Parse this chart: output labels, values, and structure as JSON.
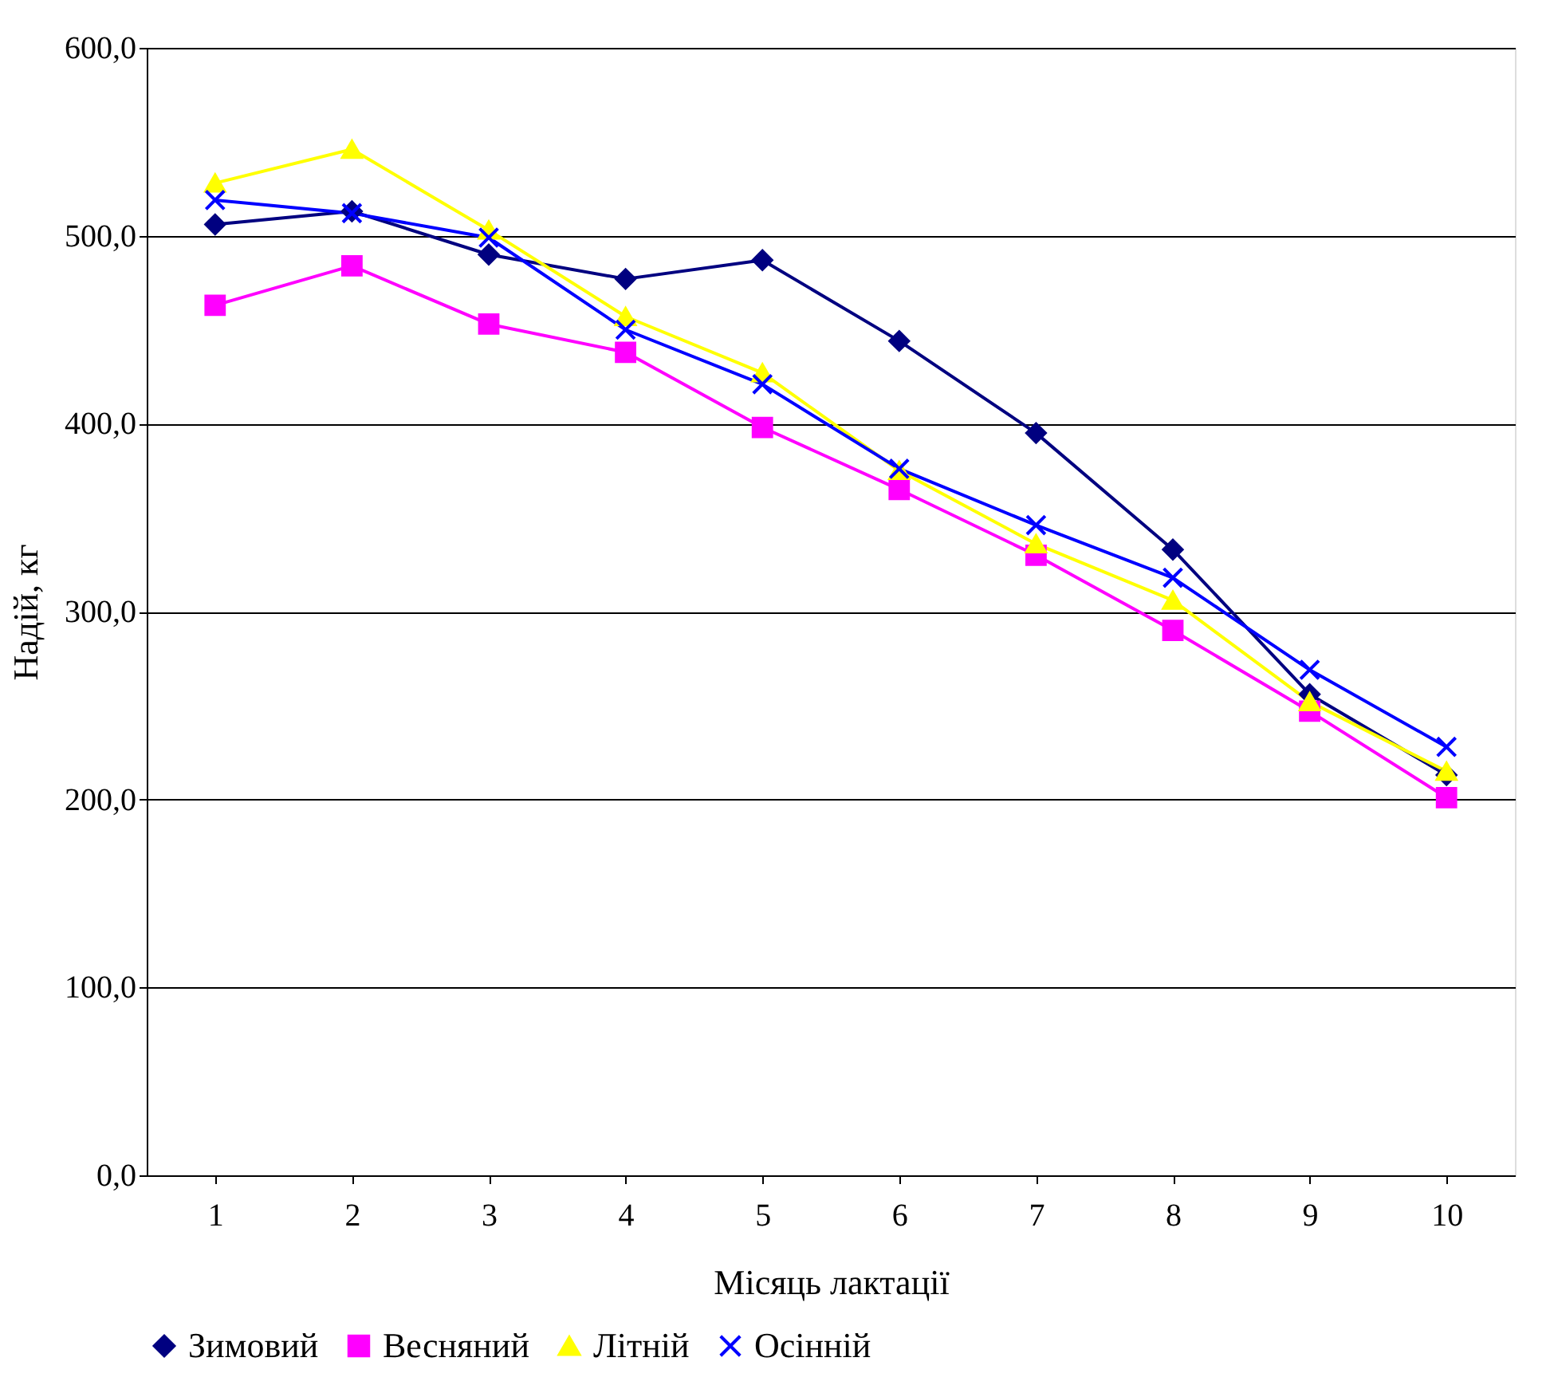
{
  "chart_data": {
    "type": "line",
    "xlabel": "Місяць лактації",
    "ylabel": "Надій, кг",
    "categories": [
      "1",
      "2",
      "3",
      "4",
      "5",
      "6",
      "7",
      "8",
      "9",
      "10"
    ],
    "series": [
      {
        "name": "Зимовий",
        "color": "#000080",
        "marker": "diamond",
        "values": [
          506,
          513,
          490,
          477,
          487,
          444,
          395,
          333,
          256,
          213
        ]
      },
      {
        "name": "Весняний",
        "color": "#ff00ff",
        "marker": "square",
        "values": [
          463,
          484,
          453,
          438,
          398,
          365,
          330,
          290,
          247,
          201
        ]
      },
      {
        "name": "Літній",
        "color": "#ffff00",
        "marker": "triangle",
        "values": [
          528,
          546,
          503,
          457,
          427,
          375,
          336,
          306,
          252,
          215
        ]
      },
      {
        "name": "Осінній",
        "color": "#0000ff",
        "marker": "cross",
        "values": [
          519,
          512,
          499,
          450,
          421,
          376,
          346,
          318,
          269,
          228
        ]
      }
    ],
    "ylim": [
      0,
      600
    ],
    "yticks": [
      {
        "value": 0,
        "label": "0,0"
      },
      {
        "value": 100,
        "label": "100,0"
      },
      {
        "value": 200,
        "label": "200,0"
      },
      {
        "value": 300,
        "label": "300,0"
      },
      {
        "value": 400,
        "label": "400,0"
      },
      {
        "value": 500,
        "label": "500,0"
      },
      {
        "value": 600,
        "label": "600,0"
      }
    ],
    "grid": "y",
    "legend": "bottom",
    "line_style": "solid"
  }
}
